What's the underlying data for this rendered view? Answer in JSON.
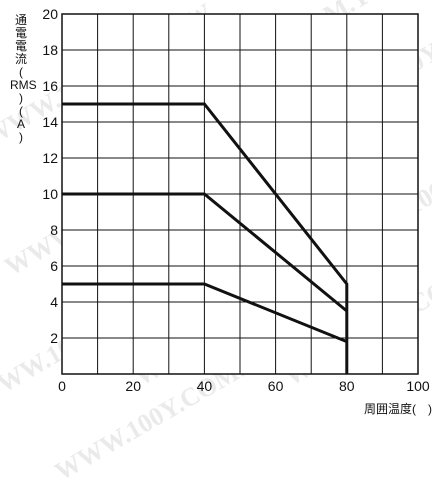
{
  "chart_data": {
    "type": "line",
    "title": "",
    "ylabel_chars": [
      "通",
      "電",
      "電",
      "流",
      "(",
      "RMS",
      ")",
      "(",
      "A",
      ")"
    ],
    "xlabel": "周囲温度(　)",
    "xlim": [
      0,
      100
    ],
    "ylim": [
      0,
      20
    ],
    "x_ticks": [
      0,
      20,
      40,
      60,
      80,
      100
    ],
    "y_ticks": [
      2,
      4,
      6,
      8,
      10,
      12,
      14,
      16,
      18,
      20
    ],
    "grid": true,
    "series": [
      {
        "x": [
          0,
          40,
          80,
          80
        ],
        "y": [
          15,
          15,
          5,
          0
        ]
      },
      {
        "x": [
          0,
          40,
          80
        ],
        "y": [
          10,
          10,
          3.5
        ]
      },
      {
        "x": [
          0,
          40,
          80
        ],
        "y": [
          5,
          5,
          1.8
        ]
      }
    ]
  },
  "watermark": "WWW.100Y.COM.TW",
  "colors": {
    "line": "#111111",
    "grid": "#111111",
    "background": "#ffffff",
    "watermark": "#d9d9d9"
  }
}
